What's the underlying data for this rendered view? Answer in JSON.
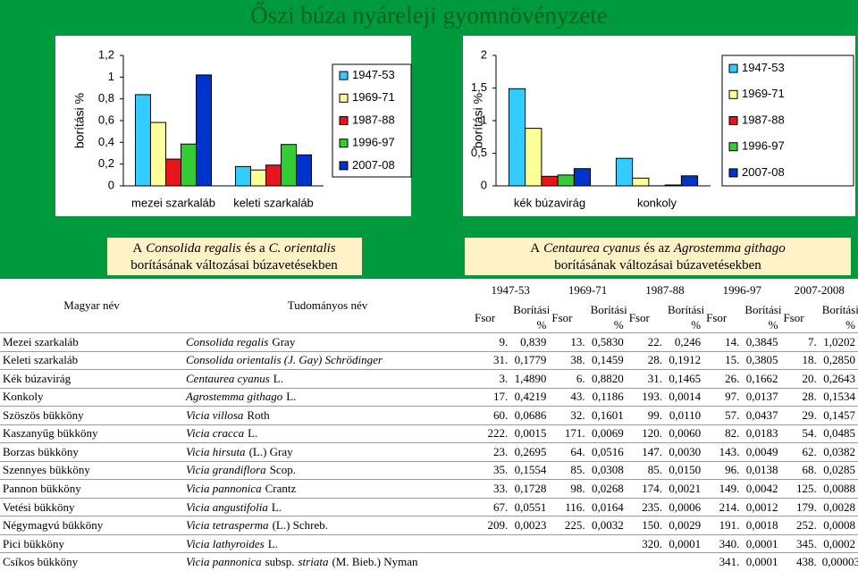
{
  "title": "Őszi búza nyáreleji gyomnövényzete",
  "chart_data": [
    {
      "type": "bar",
      "y_label": "borítási %",
      "categories": [
        "mezei szarkaláb",
        "keleti szarkaláb"
      ],
      "series": [
        {
          "name": "1947-53",
          "color": "#33ccff",
          "values": [
            0.839,
            0.1779
          ]
        },
        {
          "name": "1969-71",
          "color": "#ffff99",
          "values": [
            0.583,
            0.1459
          ]
        },
        {
          "name": "1987-88",
          "color": "#e8141b",
          "values": [
            0.246,
            0.1912
          ]
        },
        {
          "name": "1996-97",
          "color": "#33cc33",
          "values": [
            0.3845,
            0.3805
          ]
        },
        {
          "name": "2007-08",
          "color": "#0033cc",
          "values": [
            1.0202,
            0.285
          ]
        }
      ],
      "ylim": [
        0,
        1.2
      ],
      "yticks": [
        0,
        {
          "value": 0.2,
          "label": "0,2"
        },
        {
          "value": 0.4,
          "label": "0,4"
        },
        {
          "value": 0.6,
          "label": "0,6"
        },
        {
          "value": 0.8,
          "label": "0,8"
        },
        1,
        {
          "value": 1.2,
          "label": "1,2"
        }
      ],
      "legend": "right",
      "caption": [
        [
          "A",
          "Consolida regalis",
          "és a",
          "C. orientalis"
        ],
        [
          "borításának változásai búzavetésekben"
        ]
      ]
    },
    {
      "type": "bar",
      "y_label": "borítási %",
      "categories": [
        "kék búzavirág",
        "konkoly"
      ],
      "series": [
        {
          "name": "1947-53",
          "color": "#33ccff",
          "values": [
            1.489,
            0.4219
          ]
        },
        {
          "name": "1969-71",
          "color": "#ffff99",
          "values": [
            0.882,
            0.1186
          ]
        },
        {
          "name": "1987-88",
          "color": "#e8141b",
          "values": [
            0.1465,
            0.0014
          ]
        },
        {
          "name": "1996-97",
          "color": "#33cc33",
          "values": [
            0.1662,
            0.0137
          ]
        },
        {
          "name": "2007-08",
          "color": "#0033cc",
          "values": [
            0.2643,
            0.1534
          ]
        }
      ],
      "ylim": [
        0,
        2
      ],
      "yticks": [
        0,
        {
          "value": 0.5,
          "label": "0,5"
        },
        1,
        {
          "value": 1.5,
          "label": "1,5"
        },
        2
      ],
      "legend": "right",
      "caption": [
        [
          "A",
          "Centaurea cyanus",
          "és az",
          "Agrostemma githago"
        ],
        [
          "borításának változásai búzavetésekben"
        ]
      ]
    }
  ],
  "table": {
    "headers": [
      "Magyar név",
      "Tudományos név"
    ],
    "periods": [
      "1947-53",
      "1969-71",
      "1987-88",
      "1996-97",
      "2007-2008"
    ],
    "subheaders": [
      "Fsor",
      "Borítási %"
    ],
    "rows": [
      {
        "name": "Mezei szarkaláb",
        "scientific": [
          "Consolida regalis",
          "Gray"
        ],
        "cells": [
          "9.",
          "0,839",
          "13.",
          "0,5830",
          "22.",
          "0,246",
          "14.",
          "0,3845",
          "7.",
          "1,0202"
        ]
      },
      {
        "name": "Keleti szarkaláb",
        "scientific": [
          "Consolida orientalis (J. Gay) Schrödinger"
        ],
        "cells": [
          "31.",
          "0,1779",
          "38.",
          "0,1459",
          "28.",
          "0,1912",
          "15.",
          "0,3805",
          "18.",
          "0,2850"
        ]
      },
      {
        "name": "Kék búzavirág",
        "scientific": [
          "Centaurea cyanus",
          "L."
        ],
        "cells": [
          "3.",
          "1,4890",
          "6.",
          "0,8820",
          "31.",
          "0,1465",
          "26.",
          "0,1662",
          "20.",
          "0,2643"
        ]
      },
      {
        "name": "Konkoly",
        "scientific": [
          "Agrostemma githago",
          "L."
        ],
        "cells": [
          "17.",
          "0,4219",
          "43.",
          "0,1186",
          "193.",
          "0,0014",
          "97.",
          "0,0137",
          "28.",
          "0,1534"
        ]
      },
      {
        "name": "Szöszös bükköny",
        "scientific": [
          "Vicia villosa",
          "Roth"
        ],
        "cells": [
          "60.",
          "0,0686",
          "32.",
          "0,1601",
          "99.",
          "0,0110",
          "57.",
          "0,0437",
          "29.",
          "0,1457"
        ]
      },
      {
        "name": "Kaszanyűg bükköny",
        "scientific": [
          "Vicia cracca",
          "L."
        ],
        "cells": [
          "222.",
          "0,0015",
          "171.",
          "0,0069",
          "120.",
          "0,0060",
          "82.",
          "0,0183",
          "54.",
          "0,0485"
        ]
      },
      {
        "name": "Borzas bükköny",
        "scientific": [
          "Vicia hirsuta",
          "(L.) Gray"
        ],
        "cells": [
          "23.",
          "0,2695",
          "64.",
          "0,0516",
          "147.",
          "0,0030",
          "143.",
          "0,0049",
          "62.",
          "0,0382"
        ]
      },
      {
        "name": "Szennyes bükköny",
        "scientific": [
          "Vicia grandiflora",
          "Scop."
        ],
        "cells": [
          "35.",
          "0,1554",
          "85.",
          "0,0308",
          "85.",
          "0,0150",
          "96.",
          "0,0138",
          "68.",
          "0,0285"
        ]
      },
      {
        "name": "Pannon bükköny",
        "scientific": [
          "Vicia pannonica",
          "Crantz"
        ],
        "cells": [
          "33.",
          "0,1728",
          "98.",
          "0,0268",
          "174.",
          "0,0021",
          "149.",
          "0,0042",
          "125.",
          "0,0088"
        ]
      },
      {
        "name": "Vetési bükköny",
        "scientific": [
          "Vicia angustifolia",
          "L."
        ],
        "cells": [
          "67.",
          "0,0551",
          "116.",
          "0,0164",
          "235.",
          "0,0006",
          "214.",
          "0,0012",
          "179.",
          "0,0028"
        ]
      },
      {
        "name": "Négymagvú bükköny",
        "scientific": [
          "Vicia tetrasperma",
          "(L.) Schreb."
        ],
        "cells": [
          "209.",
          "0,0023",
          "225.",
          "0,0032",
          "150.",
          "0,0029",
          "191.",
          "0,0018",
          "252.",
          "0,0008"
        ]
      },
      {
        "name": "Pici bükköny",
        "scientific": [
          "Vicia lathyroides",
          "L."
        ],
        "cells": [
          null,
          null,
          null,
          null,
          "320.",
          "0,0001",
          "340.",
          "0,0001",
          "345.",
          "0,0002"
        ]
      },
      {
        "name": "Csíkos bükköny",
        "scientific": [
          "Vicia pannonica",
          "subsp.",
          "striata",
          "(M. Bieb.) Nyman"
        ],
        "cells": [
          null,
          null,
          null,
          null,
          null,
          null,
          "341.",
          "0,0001",
          "438.",
          "0,00003"
        ]
      }
    ]
  }
}
